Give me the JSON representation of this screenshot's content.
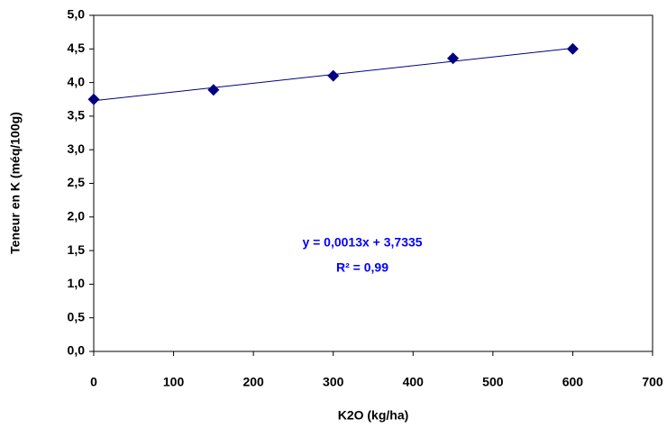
{
  "chart_data": {
    "type": "scatter",
    "x_label": "K2O (kg/ha)",
    "y_label": "Teneur en K (méq/100g)",
    "x": [
      0,
      150,
      300,
      450,
      600
    ],
    "values": [
      3.75,
      3.89,
      4.1,
      4.36,
      4.5
    ],
    "color": "#000080",
    "trendline": {
      "x": [
        0,
        600
      ],
      "values": [
        3.73,
        4.51
      ],
      "color": "#000080"
    },
    "annotations": [
      "y = 0,0013x + 3,7335",
      "R² = 0,99"
    ],
    "annotation_color": "#0000ff",
    "xlim": [
      0,
      700
    ],
    "xticks": [
      0,
      100,
      200,
      300,
      400,
      500,
      600,
      700
    ],
    "ylim": [
      0,
      5
    ],
    "yticks": [
      {
        "value": 0,
        "label": "0,0"
      },
      {
        "value": 0.5,
        "label": "0,5"
      },
      {
        "value": 1,
        "label": "1,0"
      },
      {
        "value": 1.5,
        "label": "1,5"
      },
      {
        "value": 2,
        "label": "2,0"
      },
      {
        "value": 2.5,
        "label": "2,5"
      },
      {
        "value": 3,
        "label": "3,0"
      },
      {
        "value": 3.5,
        "label": "3,5"
      },
      {
        "value": 4,
        "label": "4,0"
      },
      {
        "value": 4.5,
        "label": "4,5"
      },
      {
        "value": 5,
        "label": "5,0"
      }
    ],
    "grid": false
  }
}
